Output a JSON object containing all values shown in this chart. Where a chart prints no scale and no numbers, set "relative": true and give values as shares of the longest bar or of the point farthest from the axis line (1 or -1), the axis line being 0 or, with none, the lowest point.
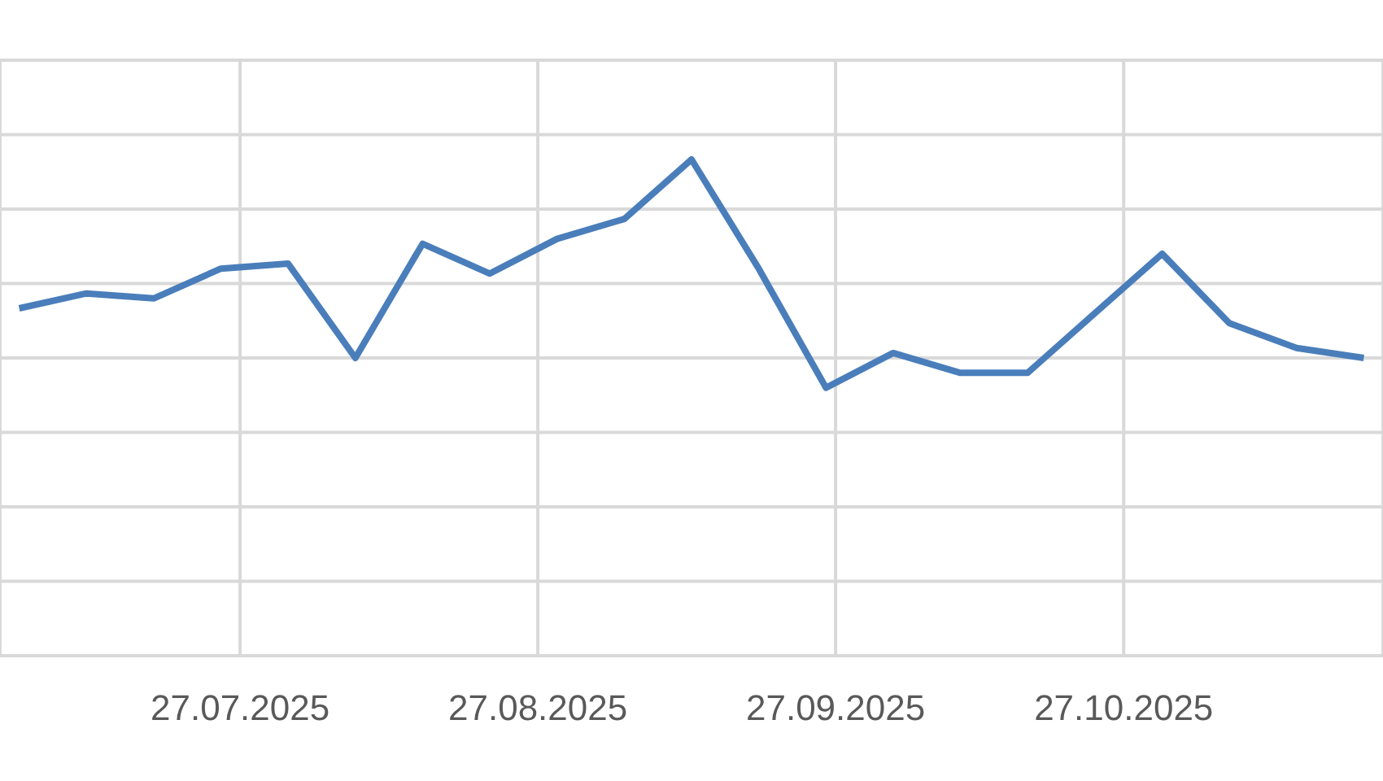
{
  "chart_data": {
    "type": "line",
    "relative": true,
    "x": [
      "2025-07-04",
      "2025-07-11",
      "2025-07-18",
      "2025-07-25",
      "2025-08-01",
      "2025-08-08",
      "2025-08-15",
      "2025-08-22",
      "2025-08-29",
      "2025-09-05",
      "2025-09-12",
      "2025-09-19",
      "2025-09-26",
      "2025-10-03",
      "2025-10-10",
      "2025-10-17",
      "2025-10-24",
      "2025-10-31",
      "2025-11-07",
      "2025-11-14",
      "2025-11-21"
    ],
    "series": [
      {
        "color": "#4a7ebb",
        "values": [
          0.7,
          0.73,
          0.72,
          0.78,
          0.79,
          0.6,
          0.83,
          0.77,
          0.84,
          0.88,
          1,
          0.78,
          0.54,
          0.61,
          0.57,
          0.57,
          0.69,
          0.81,
          0.67,
          0.62,
          0.6
        ]
      }
    ],
    "xlim": [
      "2025-07-02",
      "2025-11-23"
    ],
    "xticks": [
      {
        "value": "2025-07-27",
        "label": "27.07.2025"
      },
      {
        "value": "2025-08-27",
        "label": "27.08.2025"
      },
      {
        "value": "2025-09-27",
        "label": "27.09.2025"
      },
      {
        "value": "2025-10-27",
        "label": "27.10.2025"
      }
    ],
    "grid": true,
    "marker": "none",
    "line_style": "solid"
  }
}
